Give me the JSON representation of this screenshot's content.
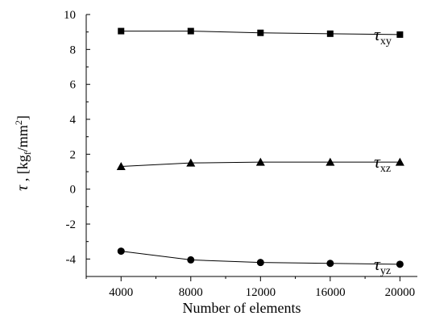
{
  "chart_data": {
    "type": "line",
    "title": "",
    "xlabel": "Number of elements",
    "ylabel": {
      "symbol": "τ",
      "separator": " , [kg",
      "subscript": "f",
      "middle": "/mm",
      "superscript": "2",
      "end": "]"
    },
    "x": [
      4000,
      8000,
      12000,
      16000,
      20000
    ],
    "xlim": [
      2000,
      21000
    ],
    "ylim": [
      -5,
      10
    ],
    "xticks": [
      "4000",
      "8000",
      "12000",
      "16000",
      "20000"
    ],
    "yticks": [
      "-4",
      "-2",
      "0",
      "2",
      "4",
      "6",
      "8",
      "10"
    ],
    "grid": false,
    "series": [
      {
        "name": "τxy",
        "label_symbol": "τ",
        "label_sub": "xy",
        "marker": "square",
        "values": [
          9.05,
          9.05,
          8.95,
          8.9,
          8.85
        ]
      },
      {
        "name": "τxz",
        "label_symbol": "τ",
        "label_sub": "xz",
        "marker": "triangle",
        "values": [
          1.3,
          1.5,
          1.55,
          1.55,
          1.55
        ]
      },
      {
        "name": "τyz",
        "label_symbol": "τ",
        "label_sub": "yz",
        "marker": "circle",
        "values": [
          -3.55,
          -4.05,
          -4.2,
          -4.25,
          -4.3
        ]
      }
    ]
  }
}
